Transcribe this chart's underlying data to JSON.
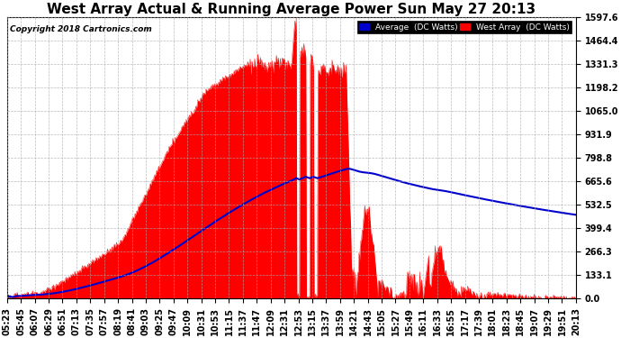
{
  "title": "West Array Actual & Running Average Power Sun May 27 20:13",
  "copyright": "Copyright 2018 Cartronics.com",
  "legend_average": "Average  (DC Watts)",
  "legend_west": "West Array  (DC Watts)",
  "ymax": 1597.6,
  "yticks": [
    0.0,
    133.1,
    266.3,
    399.4,
    532.5,
    665.6,
    798.8,
    931.9,
    1065.0,
    1198.2,
    1331.3,
    1464.4,
    1597.6
  ],
  "background_color": "#ffffff",
  "plot_bg_color": "#ffffff",
  "grid_color": "#aaaaaa",
  "fill_color": "#ff0000",
  "line_color": "#0000cc",
  "title_fontsize": 11,
  "tick_fontsize": 7,
  "xtick_labels": [
    "05:23",
    "05:45",
    "06:07",
    "06:29",
    "06:51",
    "07:13",
    "07:35",
    "07:57",
    "08:19",
    "08:41",
    "09:03",
    "09:25",
    "09:47",
    "10:09",
    "10:31",
    "10:53",
    "11:15",
    "11:37",
    "11:47",
    "12:09",
    "12:31",
    "12:53",
    "13:15",
    "13:37",
    "13:59",
    "14:21",
    "14:43",
    "15:05",
    "15:27",
    "15:49",
    "16:11",
    "16:33",
    "16:55",
    "17:17",
    "17:39",
    "18:01",
    "18:23",
    "18:45",
    "19:07",
    "19:29",
    "19:51",
    "20:13"
  ]
}
